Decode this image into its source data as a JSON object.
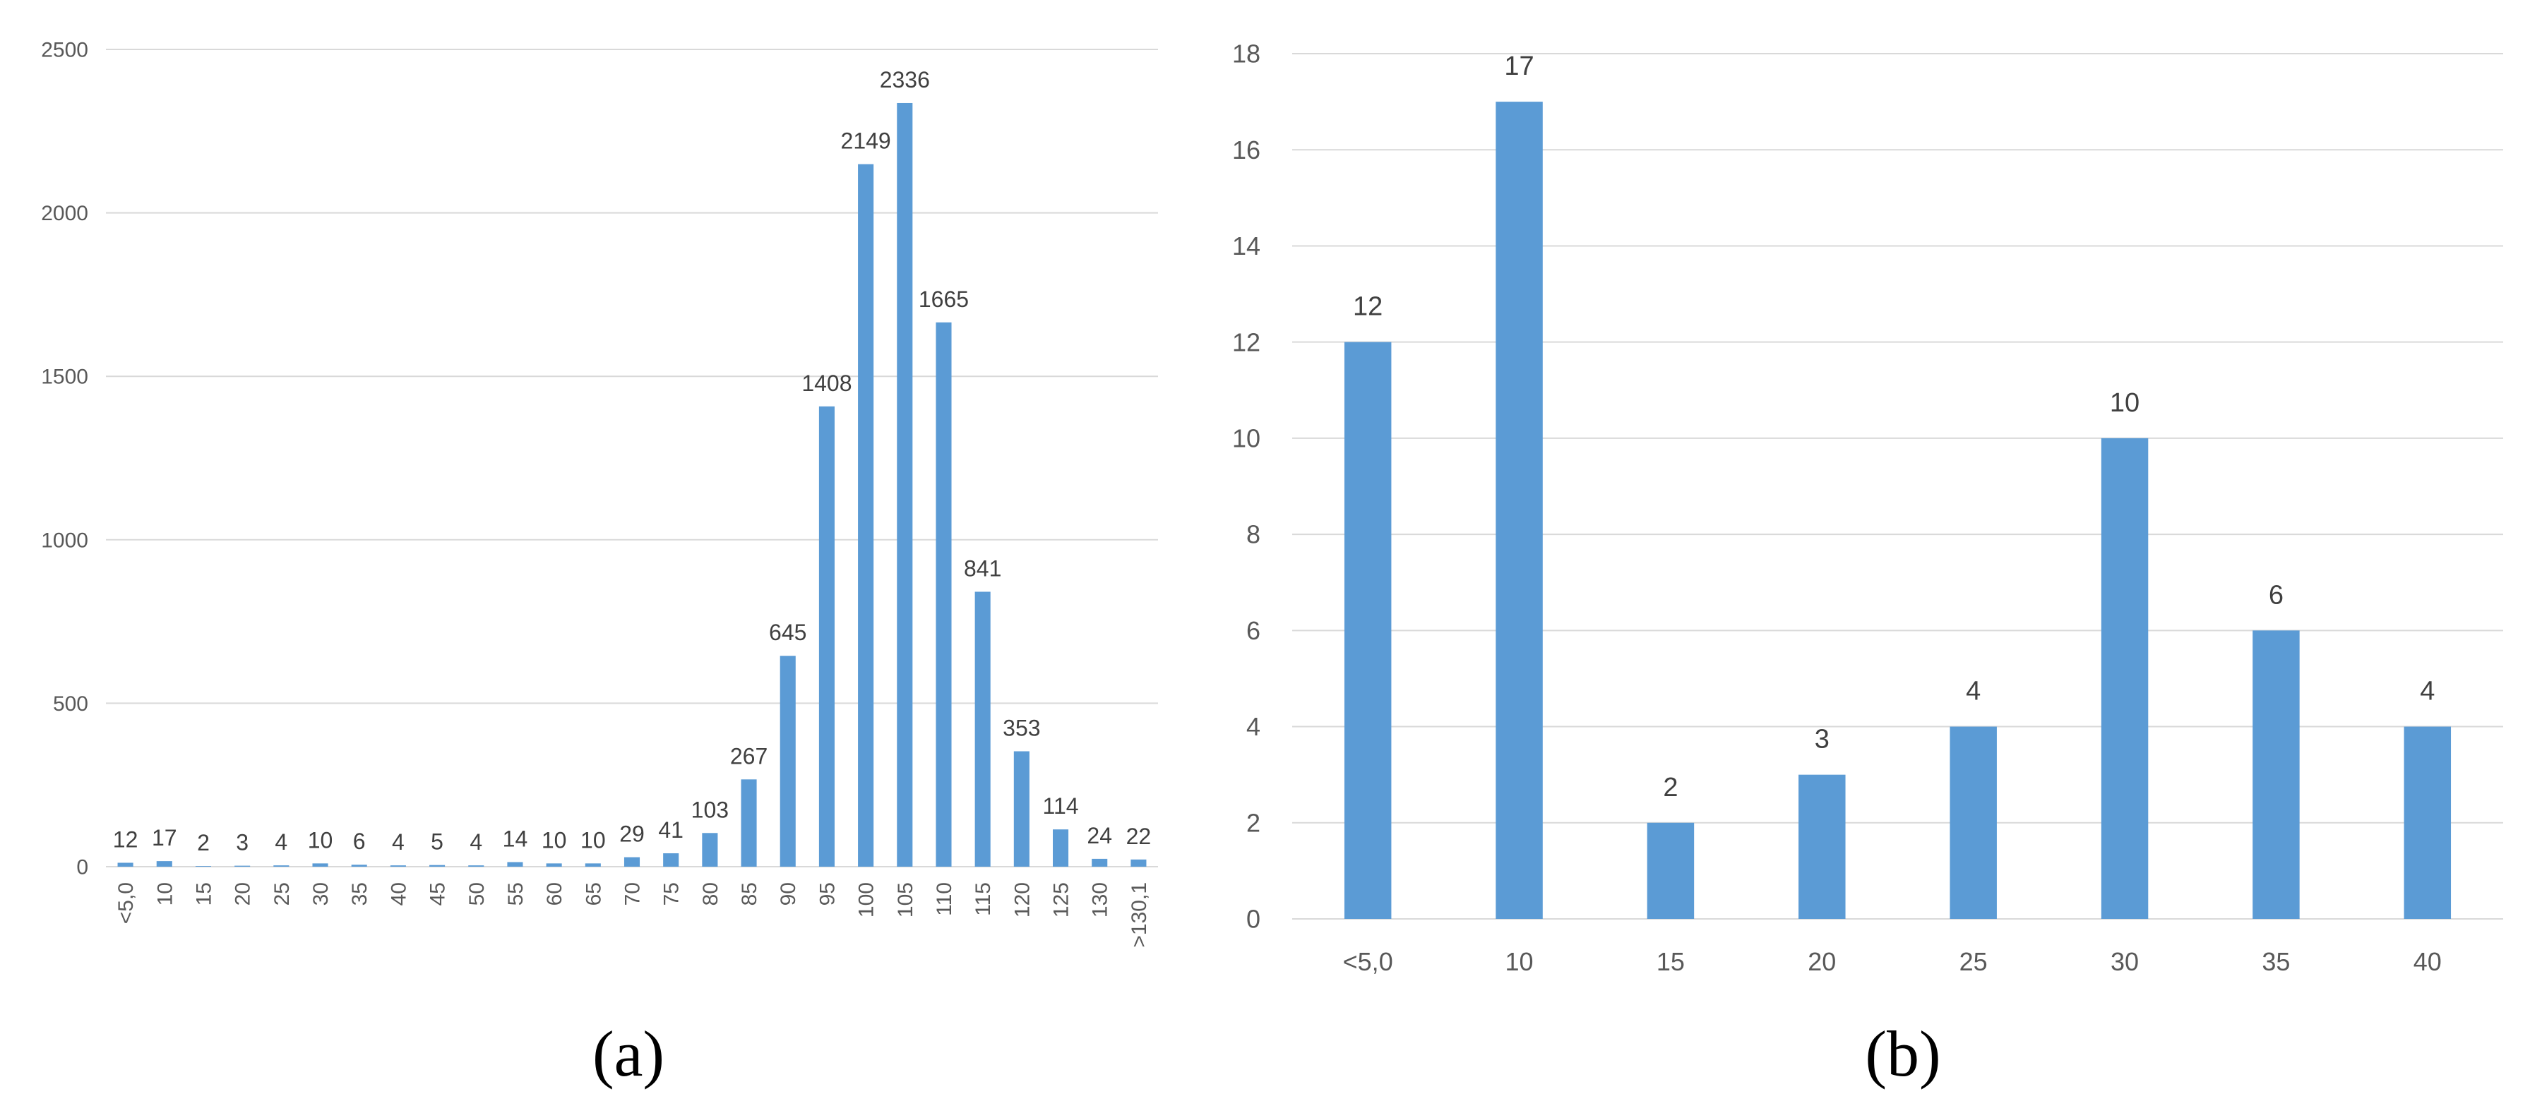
{
  "colors": {
    "bar": "#5b9bd5",
    "grid": "#d9d9d9",
    "text": "#595959"
  },
  "chart_data": [
    {
      "id": "a",
      "caption": "(a)",
      "type": "bar",
      "categories": [
        "<5,0",
        "10",
        "15",
        "20",
        "25",
        "30",
        "35",
        "40",
        "45",
        "50",
        "55",
        "60",
        "65",
        "70",
        "75",
        "80",
        "85",
        "90",
        "95",
        "100",
        "105",
        "110",
        "115",
        "120",
        "125",
        "130",
        ">130,1"
      ],
      "values": [
        12,
        17,
        2,
        3,
        4,
        10,
        6,
        4,
        5,
        4,
        14,
        10,
        10,
        29,
        41,
        103,
        267,
        645,
        1408,
        2149,
        2336,
        1665,
        841,
        353,
        114,
        24,
        22
      ],
      "ylim": [
        0,
        2500
      ],
      "yticks": [
        0,
        500,
        1000,
        1500,
        2000,
        2500
      ],
      "grid": true,
      "data_labels": true,
      "xlabel": "",
      "ylabel": ""
    },
    {
      "id": "b",
      "caption": "(b)",
      "type": "bar",
      "categories": [
        "<5,0",
        "10",
        "15",
        "20",
        "25",
        "30",
        "35",
        "40"
      ],
      "values": [
        12,
        17,
        2,
        3,
        4,
        10,
        6,
        4
      ],
      "ylim": [
        0,
        18
      ],
      "yticks": [
        0,
        2,
        4,
        6,
        8,
        10,
        12,
        14,
        16,
        18
      ],
      "grid": true,
      "data_labels": true,
      "xlabel": "",
      "ylabel": ""
    }
  ]
}
